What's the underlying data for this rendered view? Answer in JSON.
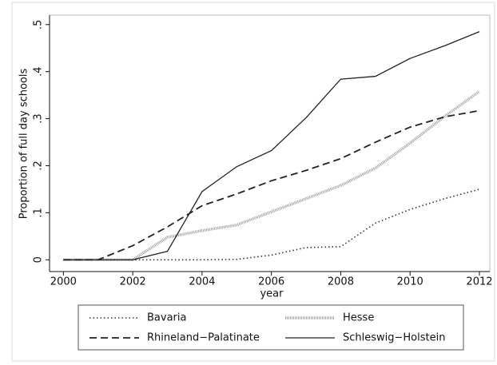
{
  "chart_data": {
    "type": "line",
    "x_label": "year",
    "y_label": "Proportion of full day schools",
    "x": [
      2000,
      2001,
      2002,
      2003,
      2004,
      2005,
      2006,
      2007,
      2008,
      2009,
      2010,
      2011,
      2012
    ],
    "series": [
      {
        "name": "Bavaria",
        "color": "#333333",
        "style": "dotted",
        "values": [
          0,
          0,
          0,
          0,
          0,
          0.001,
          0.01,
          0.026,
          0.028,
          0.078,
          0.107,
          0.13,
          0.15
        ]
      },
      {
        "name": "Hesse",
        "color": "#a0a0a0",
        "style": "hatched",
        "values": [
          0,
          0,
          0,
          0.048,
          0.062,
          0.074,
          0.102,
          0.13,
          0.158,
          0.195,
          0.248,
          0.305,
          0.358
        ]
      },
      {
        "name": "Rhineland−Palatinate",
        "color": "#222222",
        "style": "dashed",
        "values": [
          0,
          0,
          0.03,
          0.07,
          0.115,
          0.14,
          0.168,
          0.19,
          0.215,
          0.25,
          0.282,
          0.304,
          0.317
        ]
      },
      {
        "name": "Schleswig−Holstein",
        "color": "#222222",
        "style": "solid",
        "values": [
          0,
          0,
          0,
          0.018,
          0.145,
          0.198,
          0.232,
          0.302,
          0.384,
          0.39,
          0.428,
          0.455,
          0.485
        ]
      }
    ],
    "xlim": [
      1999.6,
      2012.3
    ],
    "ylim": [
      -0.025,
      0.52
    ],
    "xticks": [
      2000,
      2002,
      2004,
      2006,
      2008,
      2010,
      2012
    ],
    "yticks": [
      0,
      {
        "value": 0.1,
        "label": ".1"
      },
      {
        "value": 0.2,
        "label": ".2"
      },
      {
        "value": 0.3,
        "label": ".3"
      },
      {
        "value": 0.4,
        "label": ".4"
      },
      {
        "value": 0.5,
        "label": ".5"
      }
    ],
    "grid": false,
    "legend": "bottom"
  }
}
